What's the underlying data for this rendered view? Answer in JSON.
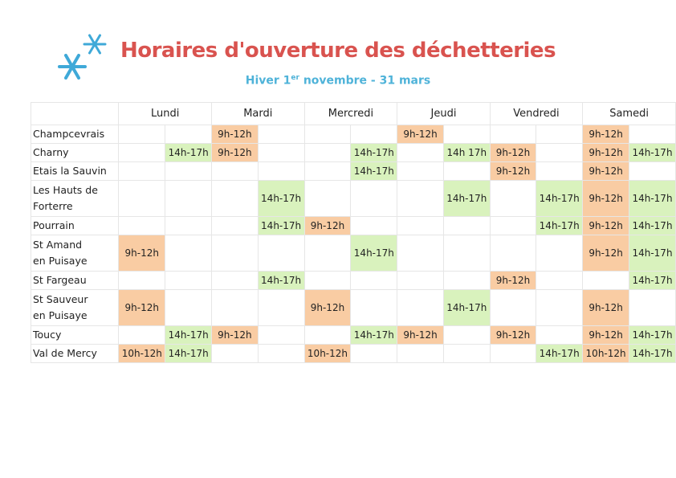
{
  "header": {
    "title": "Horaires d'ouverture des déchetteries",
    "subtitle": [
      "Hiver 1",
      "er",
      " novembre - 31 mars"
    ]
  },
  "table": {
    "am_color": "#f9cca3",
    "pm_color": "#d9f2bd",
    "days": [
      "Lundi",
      "Mardi",
      "Mercredi",
      "Jeudi",
      "Vendredi",
      "Samedi"
    ],
    "rows": [
      {
        "name": "Champcevrais",
        "cells": [
          null,
          null,
          "9h-12h",
          null,
          null,
          null,
          "9h-12h",
          null,
          null,
          null,
          "9h-12h",
          null
        ]
      },
      {
        "name": "Charny",
        "cells": [
          null,
          "14h-17h",
          "9h-12h",
          null,
          null,
          "14h-17h",
          null,
          "14h 17h",
          "9h-12h",
          null,
          "9h-12h",
          "14h-17h"
        ]
      },
      {
        "name": "Etais la Sauvin",
        "cells": [
          null,
          null,
          null,
          null,
          null,
          "14h-17h",
          null,
          null,
          "9h-12h",
          null,
          "9h-12h",
          null
        ]
      },
      {
        "name": "Les Hauts de\nForterre",
        "cells": [
          null,
          null,
          null,
          "14h-17h",
          null,
          null,
          null,
          "14h-17h",
          null,
          "14h-17h",
          "9h-12h",
          "14h-17h"
        ]
      },
      {
        "name": "Pourrain",
        "cells": [
          null,
          null,
          null,
          "14h-17h",
          "9h-12h",
          null,
          null,
          null,
          null,
          "14h-17h",
          "9h-12h",
          "14h-17h"
        ]
      },
      {
        "name": "St Amand\nen Puisaye",
        "cells": [
          "9h-12h",
          null,
          null,
          null,
          null,
          "14h-17h",
          null,
          null,
          null,
          null,
          "9h-12h",
          "14h-17h"
        ]
      },
      {
        "name": "St Fargeau",
        "cells": [
          null,
          null,
          null,
          "14h-17h",
          null,
          null,
          null,
          null,
          "9h-12h",
          null,
          null,
          "14h-17h"
        ]
      },
      {
        "name": "St Sauveur\nen Puisaye",
        "cells": [
          "9h-12h",
          null,
          null,
          null,
          "9h-12h",
          null,
          null,
          "14h-17h",
          null,
          null,
          "9h-12h",
          null
        ]
      },
      {
        "name": "Toucy",
        "cells": [
          null,
          "14h-17h",
          "9h-12h",
          null,
          null,
          "14h-17h",
          "9h-12h",
          null,
          "9h-12h",
          null,
          "9h-12h",
          "14h-17h"
        ]
      },
      {
        "name": "Val de Mercy",
        "cells": [
          "10h-12h",
          "14h-17h",
          null,
          null,
          "10h-12h",
          null,
          null,
          null,
          null,
          "14h-17h",
          "10h-12h",
          "14h-17h"
        ]
      }
    ]
  }
}
